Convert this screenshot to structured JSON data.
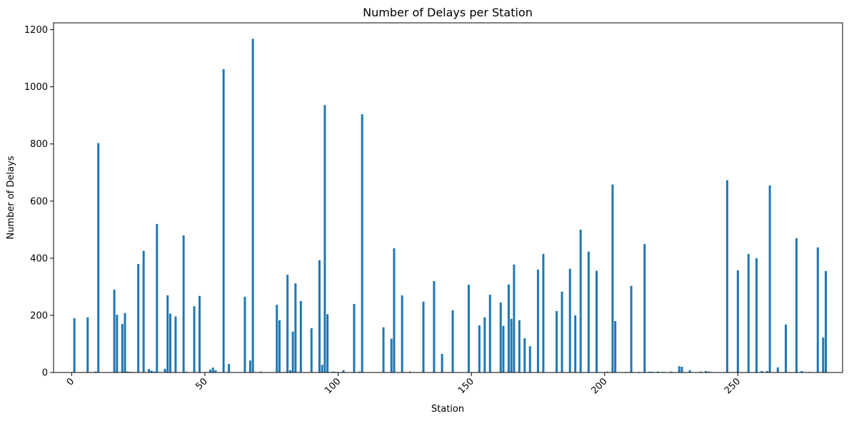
{
  "chart_data": {
    "type": "bar",
    "title": "Number of Delays per Station",
    "xlabel": "Station",
    "ylabel": "Number of Delays",
    "x_ticks": [
      0,
      50,
      100,
      150,
      200,
      250
    ],
    "y_ticks": [
      0,
      200,
      400,
      600,
      800,
      1000,
      1200
    ],
    "xlim": [
      -6.8,
      289.3
    ],
    "ylim": [
      0,
      1224
    ],
    "grid": false,
    "color": "#1f77b4",
    "bars": [
      {
        "x": 1,
        "value": 190
      },
      {
        "x": 6,
        "value": 193
      },
      {
        "x": 9,
        "value": 3
      },
      {
        "x": 10,
        "value": 803
      },
      {
        "x": 16,
        "value": 290
      },
      {
        "x": 17,
        "value": 202
      },
      {
        "x": 19,
        "value": 170
      },
      {
        "x": 20,
        "value": 208
      },
      {
        "x": 21,
        "value": 3
      },
      {
        "x": 22,
        "value": 2
      },
      {
        "x": 23,
        "value": 2
      },
      {
        "x": 25,
        "value": 380
      },
      {
        "x": 27,
        "value": 426
      },
      {
        "x": 29,
        "value": 12
      },
      {
        "x": 30,
        "value": 6
      },
      {
        "x": 31,
        "value": 3
      },
      {
        "x": 32,
        "value": 520
      },
      {
        "x": 35,
        "value": 13
      },
      {
        "x": 36,
        "value": 270
      },
      {
        "x": 37,
        "value": 206
      },
      {
        "x": 39,
        "value": 196
      },
      {
        "x": 42,
        "value": 480
      },
      {
        "x": 43,
        "value": 3
      },
      {
        "x": 46,
        "value": 232
      },
      {
        "x": 48,
        "value": 268
      },
      {
        "x": 52,
        "value": 10
      },
      {
        "x": 53,
        "value": 17
      },
      {
        "x": 54,
        "value": 8
      },
      {
        "x": 57,
        "value": 1062
      },
      {
        "x": 59,
        "value": 30
      },
      {
        "x": 65,
        "value": 265
      },
      {
        "x": 67,
        "value": 42
      },
      {
        "x": 68,
        "value": 1168
      },
      {
        "x": 71,
        "value": 3
      },
      {
        "x": 77,
        "value": 237
      },
      {
        "x": 78,
        "value": 183
      },
      {
        "x": 80,
        "value": 2
      },
      {
        "x": 81,
        "value": 342
      },
      {
        "x": 82,
        "value": 8
      },
      {
        "x": 83,
        "value": 143
      },
      {
        "x": 84,
        "value": 312
      },
      {
        "x": 86,
        "value": 250
      },
      {
        "x": 90,
        "value": 155
      },
      {
        "x": 93,
        "value": 393
      },
      {
        "x": 94,
        "value": 27
      },
      {
        "x": 95,
        "value": 936
      },
      {
        "x": 96,
        "value": 204
      },
      {
        "x": 98,
        "value": 3
      },
      {
        "x": 99,
        "value": 2
      },
      {
        "x": 102,
        "value": 8
      },
      {
        "x": 106,
        "value": 240
      },
      {
        "x": 108,
        "value": 3
      },
      {
        "x": 109,
        "value": 904
      },
      {
        "x": 117,
        "value": 158
      },
      {
        "x": 120,
        "value": 118
      },
      {
        "x": 121,
        "value": 435
      },
      {
        "x": 124,
        "value": 270
      },
      {
        "x": 127,
        "value": 3
      },
      {
        "x": 132,
        "value": 248
      },
      {
        "x": 136,
        "value": 320
      },
      {
        "x": 139,
        "value": 65
      },
      {
        "x": 143,
        "value": 218
      },
      {
        "x": 149,
        "value": 307
      },
      {
        "x": 153,
        "value": 165
      },
      {
        "x": 155,
        "value": 193
      },
      {
        "x": 157,
        "value": 272
      },
      {
        "x": 161,
        "value": 245
      },
      {
        "x": 162,
        "value": 163
      },
      {
        "x": 164,
        "value": 308
      },
      {
        "x": 165,
        "value": 188
      },
      {
        "x": 166,
        "value": 378
      },
      {
        "x": 168,
        "value": 183
      },
      {
        "x": 170,
        "value": 120
      },
      {
        "x": 172,
        "value": 92
      },
      {
        "x": 175,
        "value": 360
      },
      {
        "x": 177,
        "value": 415
      },
      {
        "x": 182,
        "value": 215
      },
      {
        "x": 184,
        "value": 283
      },
      {
        "x": 187,
        "value": 363
      },
      {
        "x": 189,
        "value": 200
      },
      {
        "x": 191,
        "value": 500
      },
      {
        "x": 194,
        "value": 423
      },
      {
        "x": 197,
        "value": 356
      },
      {
        "x": 201,
        "value": 3
      },
      {
        "x": 203,
        "value": 658
      },
      {
        "x": 204,
        "value": 180
      },
      {
        "x": 208,
        "value": 2
      },
      {
        "x": 210,
        "value": 303
      },
      {
        "x": 213,
        "value": 2
      },
      {
        "x": 215,
        "value": 450
      },
      {
        "x": 217,
        "value": 3
      },
      {
        "x": 218,
        "value": 2
      },
      {
        "x": 220,
        "value": 3
      },
      {
        "x": 222,
        "value": 2
      },
      {
        "x": 225,
        "value": 3
      },
      {
        "x": 228,
        "value": 22
      },
      {
        "x": 229,
        "value": 20
      },
      {
        "x": 232,
        "value": 8
      },
      {
        "x": 236,
        "value": 3
      },
      {
        "x": 238,
        "value": 5
      },
      {
        "x": 239,
        "value": 3
      },
      {
        "x": 240,
        "value": 2
      },
      {
        "x": 246,
        "value": 673
      },
      {
        "x": 250,
        "value": 358
      },
      {
        "x": 254,
        "value": 415
      },
      {
        "x": 257,
        "value": 400
      },
      {
        "x": 259,
        "value": 5
      },
      {
        "x": 261,
        "value": 5
      },
      {
        "x": 262,
        "value": 655
      },
      {
        "x": 265,
        "value": 18
      },
      {
        "x": 268,
        "value": 168
      },
      {
        "x": 272,
        "value": 470
      },
      {
        "x": 274,
        "value": 5
      },
      {
        "x": 277,
        "value": 2
      },
      {
        "x": 280,
        "value": 438
      },
      {
        "x": 282,
        "value": 122
      },
      {
        "x": 283,
        "value": 355
      }
    ]
  }
}
